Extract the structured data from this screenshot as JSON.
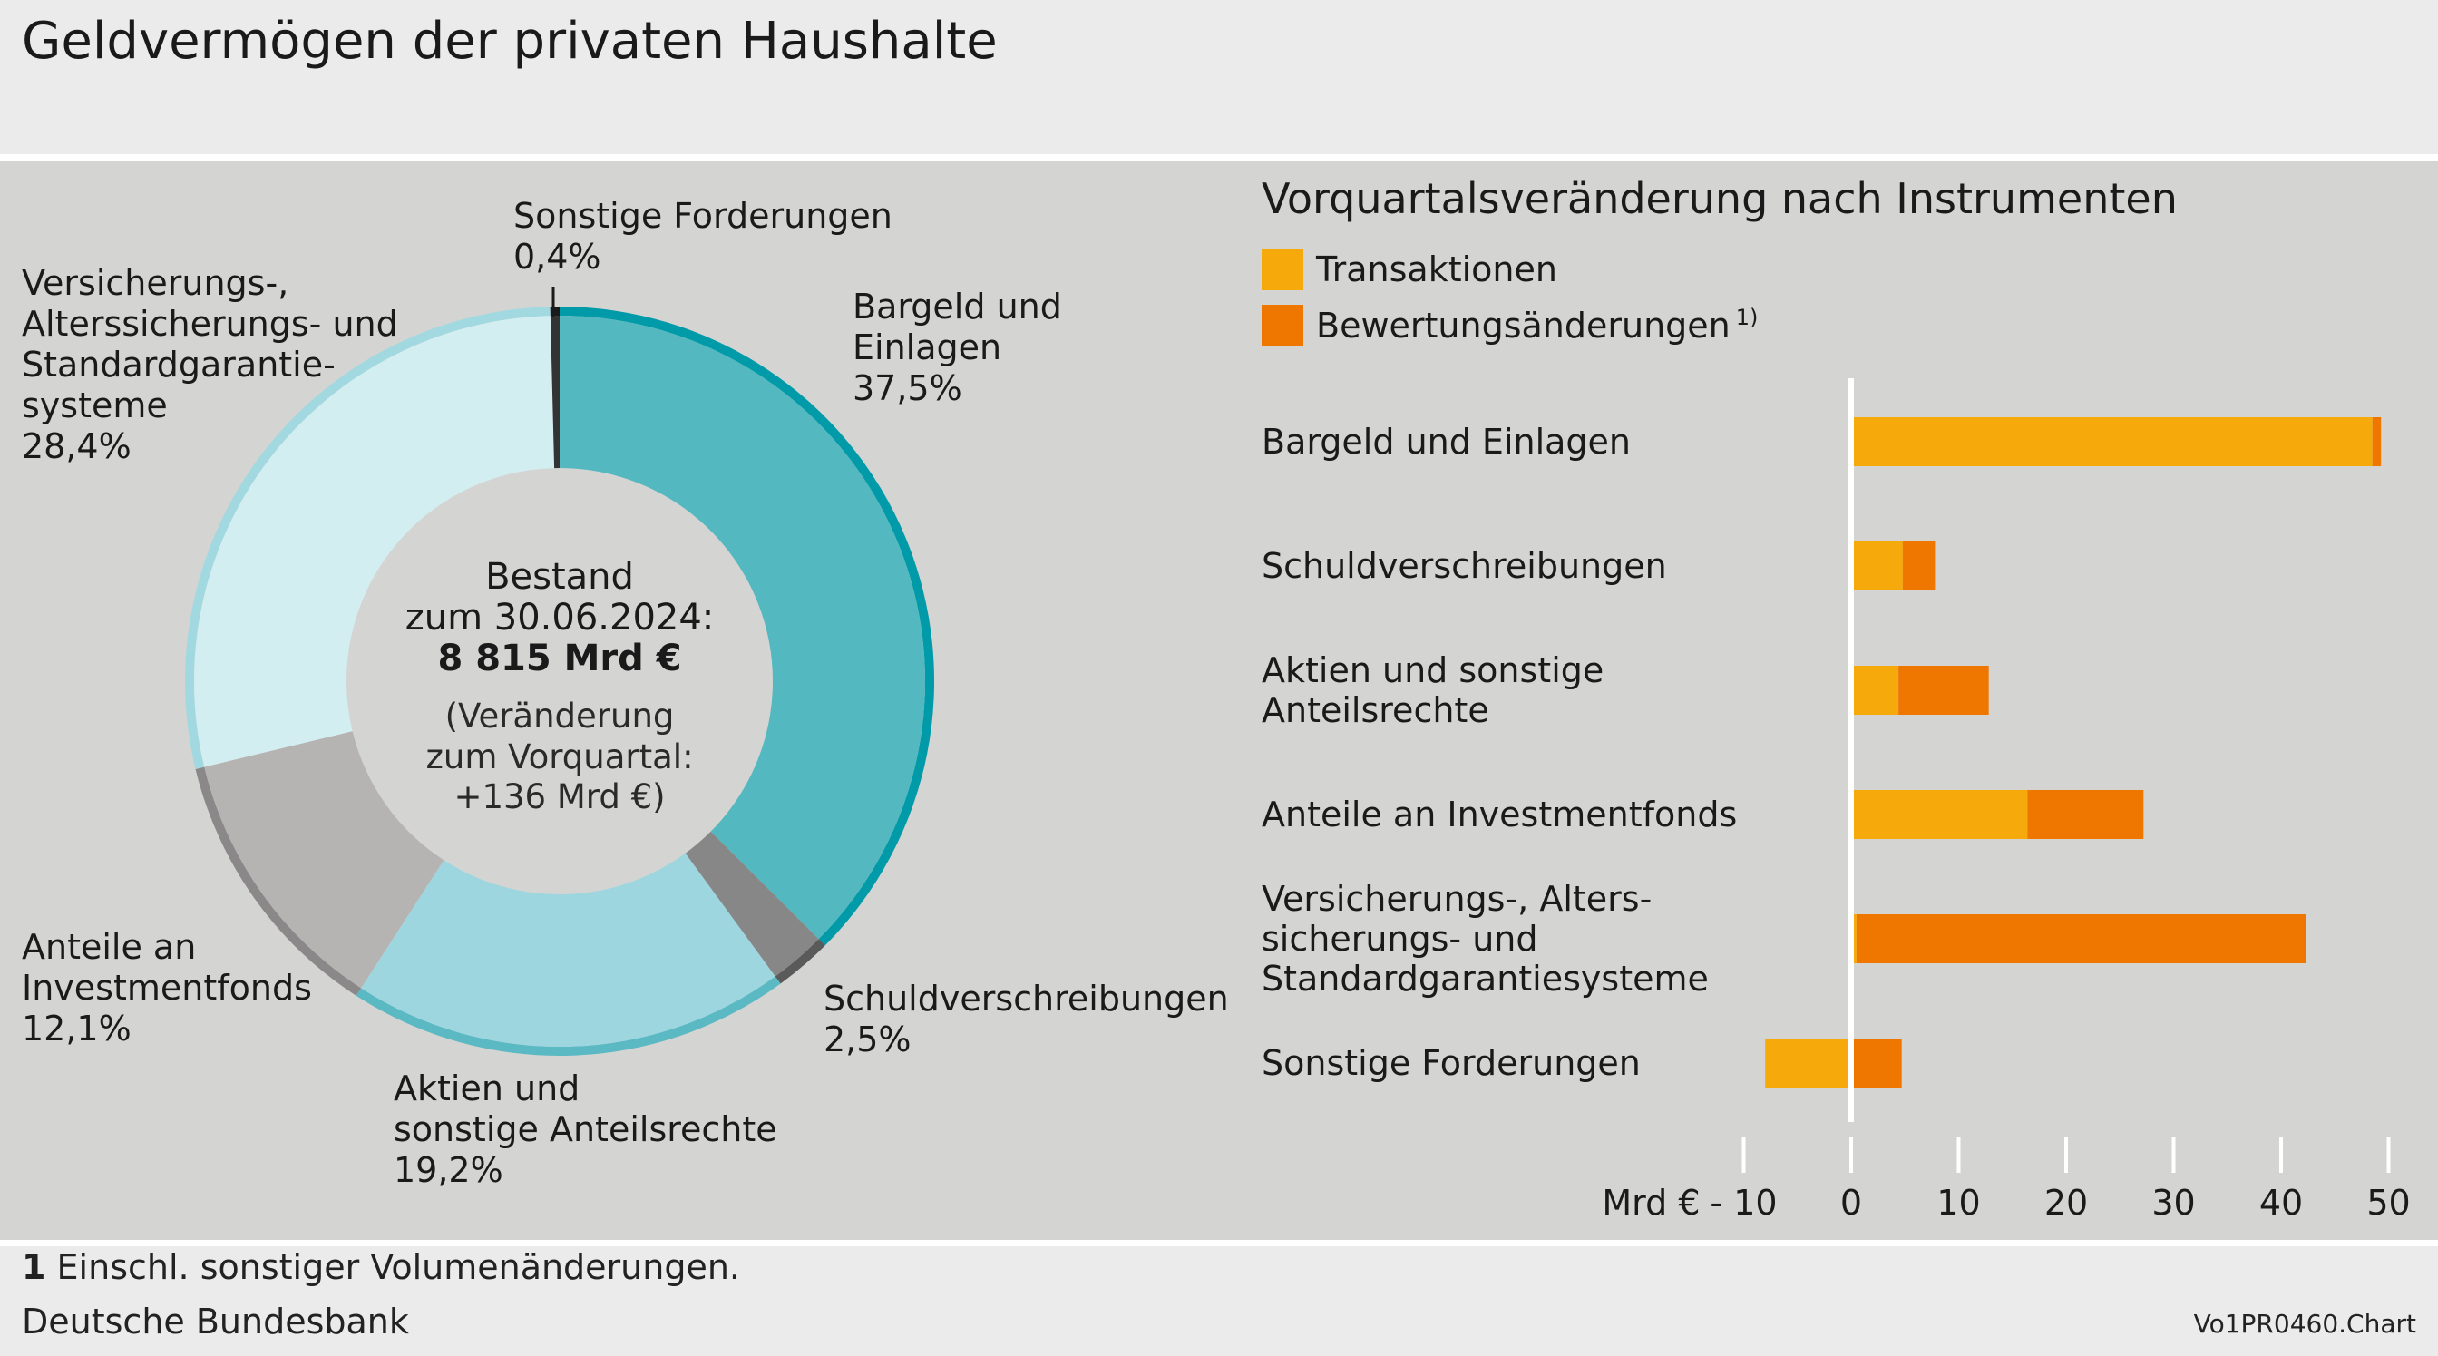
{
  "title": "Geldvermögen der privaten Haushalte",
  "colors": {
    "background": "#ebebeb",
    "panel": "#d4d4d3",
    "transactions": "#f5a90a",
    "valuation": "#ef7700",
    "zero_line": "#ffffff"
  },
  "footnote": {
    "marker": "1",
    "text": "Einschl. sonstiger Volumenänderungen."
  },
  "source": "Deutsche Bundesbank",
  "chart_id": "Vo1PR0460.Chart",
  "chart_data": [
    {
      "type": "pie",
      "variant": "donut",
      "center_text": {
        "line1": "Bestand",
        "line2": "zum 30.06.2024:",
        "line3": "8 815 Mrd €",
        "line4": "(Veränderung",
        "line5": "zum Vorquartal:",
        "line6": "+136 Mrd €)"
      },
      "slices": [
        {
          "label_lines": [
            "Bargeld und",
            "Einlagen"
          ],
          "value": 37.5,
          "value_label": "37,5%",
          "fill": "#53b8bf",
          "rim": "#009aa8"
        },
        {
          "label_lines": [
            "Schuldverschreibungen"
          ],
          "value": 2.5,
          "value_label": "2,5%",
          "fill": "#878787",
          "rim": "#5a5a5a"
        },
        {
          "label_lines": [
            "Aktien und",
            "sonstige Anteilsrechte"
          ],
          "value": 19.2,
          "value_label": "19,2%",
          "fill": "#9dd6df",
          "rim": "#5ab9c3"
        },
        {
          "label_lines": [
            "Anteile an",
            "Investmentfonds"
          ],
          "value": 12.1,
          "value_label": "12,1%",
          "fill": "#b6b4b3",
          "rim": "#8a8888"
        },
        {
          "label_lines": [
            "Versicherungs-,",
            "Alterssicherungs- und",
            "Standardgarantie-",
            "systeme"
          ],
          "value": 28.4,
          "value_label": "28,4%",
          "fill": "#d3eef1",
          "rim": "#a2d9e0"
        },
        {
          "label_lines": [
            "Sonstige Forderungen"
          ],
          "value": 0.4,
          "value_label": "0,4%",
          "fill": "#333333",
          "rim": "#1a1a1a"
        }
      ]
    },
    {
      "type": "bar",
      "orientation": "horizontal",
      "stacked": true,
      "title": "Vorquartalsveränderung nach Instrumenten",
      "legend": [
        {
          "name": "Transaktionen",
          "color": "#f5a90a"
        },
        {
          "name": "Bewertungsänderungen",
          "superscript": "1)",
          "color": "#ef7700"
        }
      ],
      "categories": [
        [
          "Bargeld und Einlagen"
        ],
        [
          "Schuldverschreibungen"
        ],
        [
          "Aktien und sonstige",
          "Anteilsrechte"
        ],
        [
          "Anteile an Investmentfonds"
        ],
        [
          "Versicherungs-, Alters-",
          "sicherungs- und",
          "Standardgarantiesysteme"
        ],
        [
          "Sonstige Forderungen"
        ]
      ],
      "series": [
        {
          "name": "Transaktionen",
          "values": [
            48.5,
            4.8,
            4.4,
            16.4,
            0.5,
            -8.0
          ]
        },
        {
          "name": "Bewertungsänderungen",
          "values": [
            0.8,
            3.0,
            8.4,
            10.8,
            41.8,
            4.7
          ]
        }
      ],
      "x_unit_label": "Mrd €",
      "xlim": [
        -10,
        50
      ],
      "xticks": [
        -10,
        0,
        10,
        20,
        30,
        40,
        50
      ],
      "xtick_labels": [
        "- 10",
        "0",
        "10",
        "20",
        "30",
        "40",
        "50"
      ]
    }
  ]
}
